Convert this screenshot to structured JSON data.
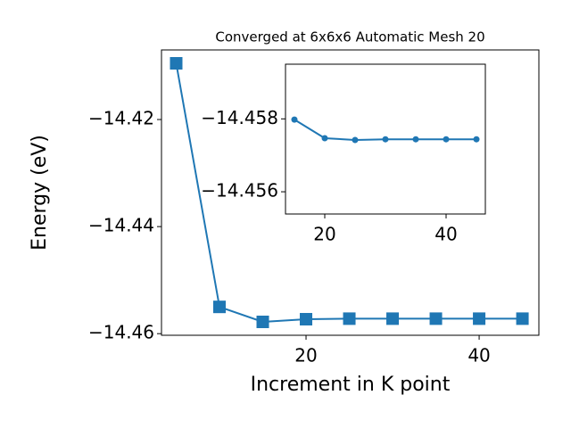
{
  "chart_data": [
    {
      "type": "line",
      "title": "Converged at 6x6x6 Automatic Mesh 20",
      "xlabel": "Increment in K point",
      "ylabel": "Energy (eV)",
      "x": [
        5,
        10,
        15,
        20,
        25,
        30,
        35,
        40,
        45
      ],
      "series": [
        {
          "name": "Energy",
          "color": "#1f77b4",
          "marker": "square",
          "values": [
            -14.4095,
            -14.455,
            -14.4578,
            -14.4573,
            -14.4572,
            -14.4572,
            -14.4572,
            -14.4572,
            -14.4572
          ]
        }
      ],
      "xlim": [
        3.3,
        46.9
      ],
      "xticks": [
        20,
        40
      ],
      "ylim": [
        -14.4603,
        -14.407
      ],
      "yticks": [
        {
          "value": -14.46,
          "label": "−14.46"
        },
        {
          "value": -14.44,
          "label": "−14.44"
        },
        {
          "value": -14.42,
          "label": "−14.42"
        }
      ]
    },
    {
      "type": "line",
      "x": [
        15,
        20,
        25,
        30,
        35,
        40,
        45
      ],
      "series": [
        {
          "name": "Energy",
          "color": "#1f77b4",
          "marker": "circle",
          "values": [
            -14.45798,
            -14.45747,
            -14.45742,
            -14.45744,
            -14.45744,
            -14.45744,
            -14.45744
          ]
        }
      ],
      "xlim": [
        13.53,
        46.47
      ],
      "xticks": [
        20,
        40
      ],
      "ylim": [
        -14.45539,
        -14.4595
      ],
      "yticks": [
        {
          "value": -14.456,
          "label": "−14.456"
        },
        {
          "value": -14.458,
          "label": "−14.458"
        }
      ]
    }
  ]
}
